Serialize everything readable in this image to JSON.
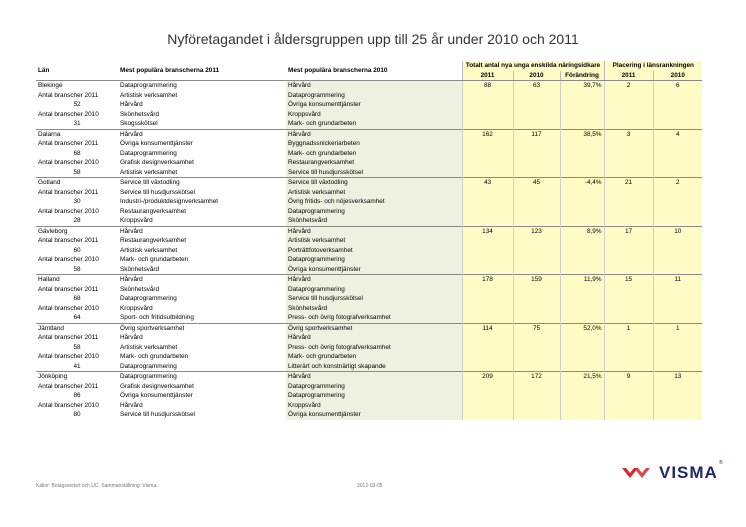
{
  "title": "Nyföretagandet i åldersgruppen upp till 25 år under 2010 och 2011",
  "headers": {
    "lan": "Län",
    "col2011": "Mest populära branscherna 2011",
    "col2010": "Mest populära branscherna 2010",
    "total": "Totalt antal nya unga enskilda näringsidkare",
    "placering": "Placering i länsrankningen",
    "y2011": "2011",
    "y2010": "2010",
    "forandring": "Förändring",
    "p2011": "2011",
    "p2010": "2010"
  },
  "rows": [
    {
      "lan": "Blekinge",
      "lbl2011": "Antal branscher 2011",
      "val2011": "52",
      "lbl2010": "Antal branscher 2010",
      "val2010": "31",
      "b2011": [
        "Dataprogrammering",
        "Artistisk verksamhet",
        "Hårvård",
        "Skönhetsvård",
        "Skogsskötsel"
      ],
      "b2010": [
        "Hårvård",
        "Dataprogrammering",
        "Övriga konsumenttjänster",
        "Kroppsvård",
        "Mark- och grundarbeten"
      ],
      "t2011": "88",
      "t2010": "63",
      "change": "39,7%",
      "p2011": "2",
      "p2010": "6"
    },
    {
      "lan": "Dalarna",
      "lbl2011": "Antal branscher 2011",
      "val2011": "68",
      "lbl2010": "Antal branscher 2010",
      "val2010": "58",
      "b2011": [
        "Hårvård",
        "Övriga konsumenttjänster",
        "Dataprogrammering",
        "Grafisk designverksamhet",
        "Artistisk verksamhet"
      ],
      "b2010": [
        "Hårvård",
        "Byggnadssnickeriarbeten",
        "Mark- och grundarbeten",
        "Restaurangverksamhet",
        "Service till husdjursskötsel"
      ],
      "t2011": "162",
      "t2010": "117",
      "change": "38,5%",
      "p2011": "3",
      "p2010": "4"
    },
    {
      "lan": "Gotland",
      "lbl2011": "Antal branscher 2011",
      "val2011": "30",
      "lbl2010": "Antal branscher 2010",
      "val2010": "28",
      "b2011": [
        "Service till växtodling",
        "Service till husdjursskötsel",
        "Industri-/produktdesignverksamhet",
        "Restaurangverksamhet",
        "Kroppsvård"
      ],
      "b2010": [
        "Service till växtodling",
        "Artistisk verksamhet",
        "Övrig fritids- och nöjesverksamhet",
        "Dataprogrammering",
        "Skönhetsvård"
      ],
      "t2011": "43",
      "t2010": "45",
      "change": "-4,4%",
      "p2011": "21",
      "p2010": "2"
    },
    {
      "lan": "Gävleborg",
      "lbl2011": "Antal branscher 2011",
      "val2011": "60",
      "lbl2010": "Antal branscher 2010",
      "val2010": "58",
      "b2011": [
        "Hårvård",
        "Restaurangverksamhet",
        "Artistisk verksamhet",
        "Mark- och grundarbeten",
        "Skönhetsvård"
      ],
      "b2010": [
        "Hårvård",
        "Artistisk verksamhet",
        "Porträttfotoverksamhet",
        "Dataprogrammering",
        "Övriga konsumenttjänster"
      ],
      "t2011": "134",
      "t2010": "123",
      "change": "8,9%",
      "p2011": "17",
      "p2010": "10"
    },
    {
      "lan": "Halland",
      "lbl2011": "Antal branscher 2011",
      "val2011": "68",
      "lbl2010": "Antal branscher 2010",
      "val2010": "64",
      "b2011": [
        "Hårvård",
        "Skönhetsvård",
        "Dataprogrammering",
        "Kroppsvård",
        "Sport- och fritidsutbildning"
      ],
      "b2010": [
        "Hårvård",
        "Dataprogrammering",
        "Service till husdjursskötsel",
        "Skönhetsvård",
        "Press- och övrig fotografverksamhet"
      ],
      "t2011": "178",
      "t2010": "159",
      "change": "11,9%",
      "p2011": "15",
      "p2010": "11"
    },
    {
      "lan": "Jämtland",
      "lbl2011": "Antal branscher 2011",
      "val2011": "58",
      "lbl2010": "Antal branscher 2010",
      "val2010": "41",
      "b2011": [
        "Övrig sportverksamhet",
        "Hårvård",
        "Artistisk verksamhet",
        "Mark- och grundarbeten",
        "Dataprogrammering"
      ],
      "b2010": [
        "Övrig sportverksamhet",
        "Hårvård",
        "Press- och övrig fotografverksamhet",
        "Mark- och grundarbeten",
        "Litterärt och konstnärligt skapande"
      ],
      "t2011": "114",
      "t2010": "75",
      "change": "52,0%",
      "p2011": "1",
      "p2010": "1"
    },
    {
      "lan": "Jönköping",
      "lbl2011": "Antal branscher 2011",
      "val2011": "86",
      "lbl2010": "Antal branscher 2010",
      "val2010": "80",
      "b2011": [
        "Dataprogrammering",
        "Grafisk designverksamhet",
        "Övriga konsumenttjänster",
        "Hårvård",
        "Service till husdjursskötsel"
      ],
      "b2010": [
        "Hårvård",
        "Dataprogrammering",
        "Dataprogrammering",
        "Kroppsvård",
        "Övriga konsumenttjänster"
      ],
      "t2011": "209",
      "t2010": "172",
      "change": "21,5%",
      "p2011": "9",
      "p2010": "13"
    }
  ],
  "footer": {
    "source": "Källor: Bolagsverket och UC. Sammanställning: Visma.",
    "date": "2012-03-05"
  },
  "logo": {
    "text": "VISMA",
    "reg": "®",
    "color": "#d9232d"
  }
}
